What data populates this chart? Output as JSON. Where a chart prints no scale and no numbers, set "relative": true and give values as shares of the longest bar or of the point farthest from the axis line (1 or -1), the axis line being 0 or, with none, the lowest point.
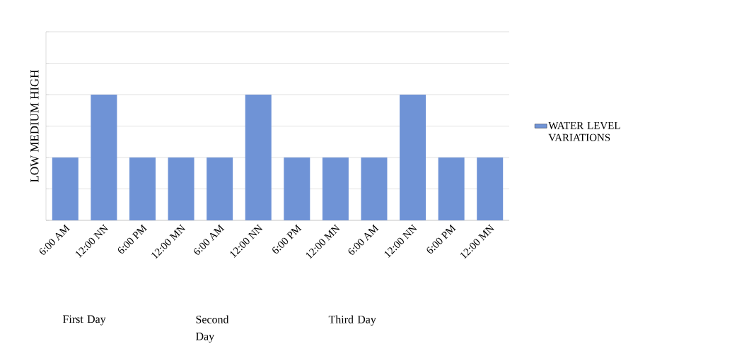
{
  "chart_data": {
    "type": "bar",
    "relative": true,
    "ylabel": "LOW MEDIUM HIGH",
    "categories": [
      "6:00 AM",
      "12:00 NN",
      "6:00 PM",
      "12:00 MN",
      "6:00 AM",
      "12:00 NN",
      "6:00 PM",
      "12:00 MN",
      "6:00 AM",
      "12:00 NN",
      "6:00 PM",
      "12:00 MN"
    ],
    "series": [
      {
        "name": "WATER LEVEL VARIATIONS",
        "color": "#6f93d6",
        "values": [
          0.5,
          1,
          0.5,
          0.5,
          0.5,
          1,
          0.5,
          0.5,
          0.5,
          1,
          0.5,
          0.5
        ]
      }
    ],
    "annotations": [
      "First Day",
      "Second Day",
      "Third Day"
    ],
    "grid": "y",
    "legend": "right"
  }
}
